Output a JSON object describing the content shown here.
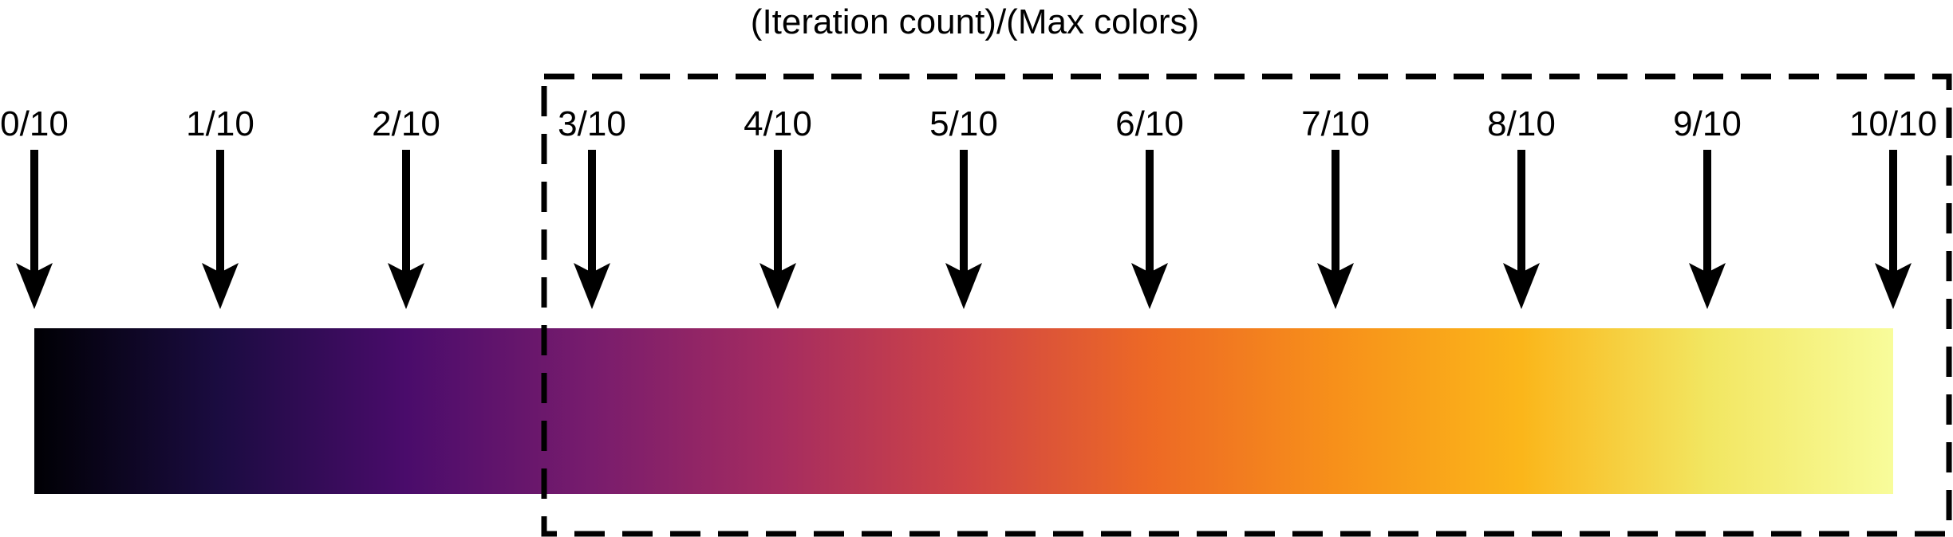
{
  "title": "(Iteration count)/(Max colors)",
  "ticks": [
    "0/10",
    "1/10",
    "2/10",
    "3/10",
    "4/10",
    "5/10",
    "6/10",
    "7/10",
    "8/10",
    "9/10",
    "10/10"
  ],
  "gradient_stops": [
    "#000004",
    "#1b0c41",
    "#4a0c6b",
    "#781c6d",
    "#a52c60",
    "#cf4446",
    "#ed6925",
    "#f7901a",
    "#fbb61a",
    "#f2e661",
    "#f8fc9b"
  ],
  "highlighted_range": {
    "from_tick": "3/10",
    "to_tick": "10/10"
  },
  "colors": {
    "arrow": "#000000",
    "text": "#000000",
    "frame": "#000000"
  }
}
